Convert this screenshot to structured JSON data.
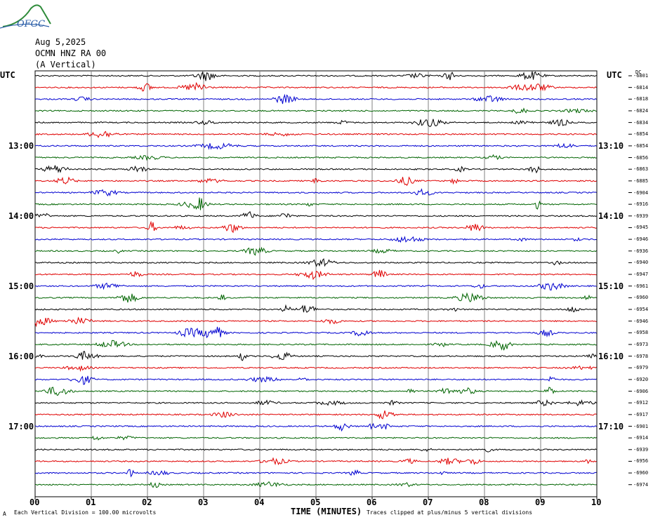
{
  "header": {
    "date": "Aug 5,2025",
    "station": "OCMN HNZ RA 00",
    "component": "(A Vertical)"
  },
  "logo": {
    "text": "OFGC",
    "icon": "mountain-logo-icon"
  },
  "chart_data": {
    "type": "seismogram",
    "utc_left": "UTC",
    "utc_right": "UTC",
    "dc_label": "DC",
    "left_hour_labels": [
      "13:00",
      "14:00",
      "15:00",
      "16:00",
      "17:00"
    ],
    "right_hour_labels": [
      "13:10",
      "14:10",
      "15:10",
      "16:10",
      "17:10"
    ],
    "dc_offsets": [
      "-6801",
      "-6814",
      "-6818",
      "-6824",
      "-6834",
      "-6854",
      "-6854",
      "-6856",
      "-6863",
      "-6885",
      "-6904",
      "-6916",
      "-6939",
      "-6945",
      "-6946",
      "-6936",
      "-6940",
      "-6947",
      "-6961",
      "-6960",
      "-6954",
      "-6946",
      "-6958",
      "-6973",
      "-6978",
      "-6979",
      "-6920",
      "-6906",
      "-6912",
      "-6917",
      "-6901",
      "-6914",
      "-6939",
      "-6956",
      "-6960",
      "-6974"
    ],
    "trace_colors": [
      "#000000",
      "#e00000",
      "#0000d0",
      "#006400"
    ],
    "x_ticks": [
      "00",
      "01",
      "02",
      "03",
      "04",
      "05",
      "06",
      "07",
      "08",
      "09",
      "10"
    ],
    "xlabel": "TIME (MINUTES)",
    "footnote_left": "Each Vertical Division =  100.00 microvolts",
    "footnote_right": "Traces clipped at plus/minus 5 vertical divisions",
    "corner_mark": "A"
  }
}
